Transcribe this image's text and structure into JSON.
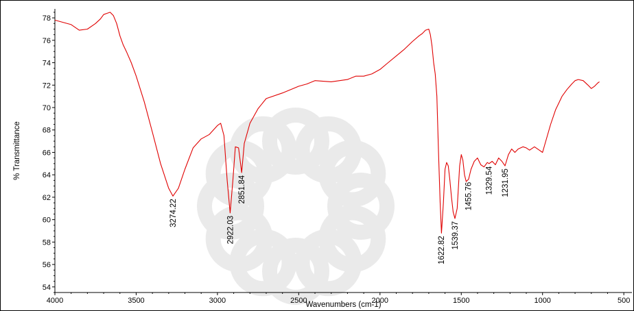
{
  "chart_data": {
    "type": "line",
    "title": "",
    "xlabel": "Wavenumbers (cm-1)",
    "ylabel": "% Transmittance",
    "x_reversed": true,
    "xlim": [
      4000,
      450
    ],
    "ylim": [
      53.5,
      78.8
    ],
    "x_ticks": [
      4000,
      3500,
      3000,
      2500,
      2000,
      1500,
      1000,
      500
    ],
    "y_ticks": [
      54,
      56,
      58,
      60,
      62,
      64,
      66,
      68,
      70,
      72,
      74,
      76,
      78
    ],
    "grid": false,
    "line_color": "#e00000",
    "series": [
      {
        "x": [
          4000,
          3950,
          3900,
          3850,
          3800,
          3750,
          3720,
          3700,
          3680,
          3660,
          3640,
          3620,
          3600,
          3580,
          3560,
          3530,
          3500,
          3450,
          3400,
          3350,
          3300,
          3274,
          3240,
          3200,
          3150,
          3100,
          3050,
          3000,
          2980,
          2960,
          2940,
          2922,
          2905,
          2890,
          2870,
          2851,
          2835,
          2800,
          2750,
          2700,
          2600,
          2500,
          2450,
          2400,
          2300,
          2200,
          2150,
          2100,
          2050,
          2000,
          1950,
          1900,
          1850,
          1800,
          1760,
          1740,
          1720,
          1700,
          1690,
          1680,
          1670,
          1660,
          1650,
          1640,
          1630,
          1622,
          1610,
          1600,
          1590,
          1580,
          1570,
          1560,
          1550,
          1539,
          1525,
          1510,
          1500,
          1490,
          1480,
          1470,
          1455,
          1440,
          1420,
          1400,
          1380,
          1360,
          1340,
          1329,
          1310,
          1290,
          1270,
          1250,
          1231,
          1210,
          1190,
          1170,
          1150,
          1120,
          1100,
          1080,
          1050,
          1020,
          1000,
          980,
          950,
          920,
          900,
          880,
          850,
          820,
          800,
          780,
          750,
          720,
          700,
          680,
          660,
          650
        ],
        "y": [
          77.8,
          77.6,
          77.4,
          76.9,
          77.0,
          77.5,
          77.9,
          78.3,
          78.4,
          78.5,
          78.2,
          77.5,
          76.4,
          75.6,
          75.0,
          74.0,
          72.8,
          70.5,
          67.8,
          65.0,
          62.8,
          62.1,
          62.8,
          64.5,
          66.4,
          67.2,
          67.6,
          68.4,
          68.6,
          67.5,
          63.5,
          60.6,
          63.5,
          66.5,
          66.4,
          64.2,
          66.8,
          68.6,
          69.9,
          70.8,
          71.3,
          71.9,
          72.1,
          72.4,
          72.3,
          72.5,
          72.8,
          72.8,
          73.0,
          73.4,
          74.0,
          74.6,
          75.2,
          75.9,
          76.4,
          76.6,
          76.9,
          77.0,
          76.5,
          75.5,
          74.0,
          73.0,
          71.0,
          66.0,
          61.5,
          58.8,
          61.5,
          64.5,
          65.1,
          64.8,
          63.5,
          62.0,
          60.7,
          60.1,
          61.0,
          64.8,
          65.8,
          65.3,
          64.0,
          63.4,
          63.6,
          64.5,
          65.2,
          65.5,
          64.9,
          64.7,
          65.1,
          65.0,
          65.2,
          64.9,
          65.5,
          65.2,
          64.8,
          65.8,
          66.3,
          66.0,
          66.3,
          66.5,
          66.4,
          66.2,
          66.5,
          66.2,
          66.0,
          67.0,
          68.5,
          69.8,
          70.4,
          71.0,
          71.6,
          72.1,
          72.4,
          72.5,
          72.4,
          72.0,
          71.7,
          71.9,
          72.2,
          72.3
        ]
      }
    ],
    "peak_labels": [
      {
        "text": "3274.22",
        "x": 3274.22,
        "y": 62.1
      },
      {
        "text": "2922.03",
        "x": 2922.03,
        "y": 60.6
      },
      {
        "text": "2851.84",
        "x": 2851.84,
        "y": 64.2
      },
      {
        "text": "1622.82",
        "x": 1622.82,
        "y": 58.8
      },
      {
        "text": "1539.37",
        "x": 1539.37,
        "y": 60.1
      },
      {
        "text": "1455.76",
        "x": 1455.76,
        "y": 63.6
      },
      {
        "text": "1329.54",
        "x": 1329.54,
        "y": 65.0
      },
      {
        "text": "1231.95",
        "x": 1231.95,
        "y": 64.8
      }
    ]
  }
}
